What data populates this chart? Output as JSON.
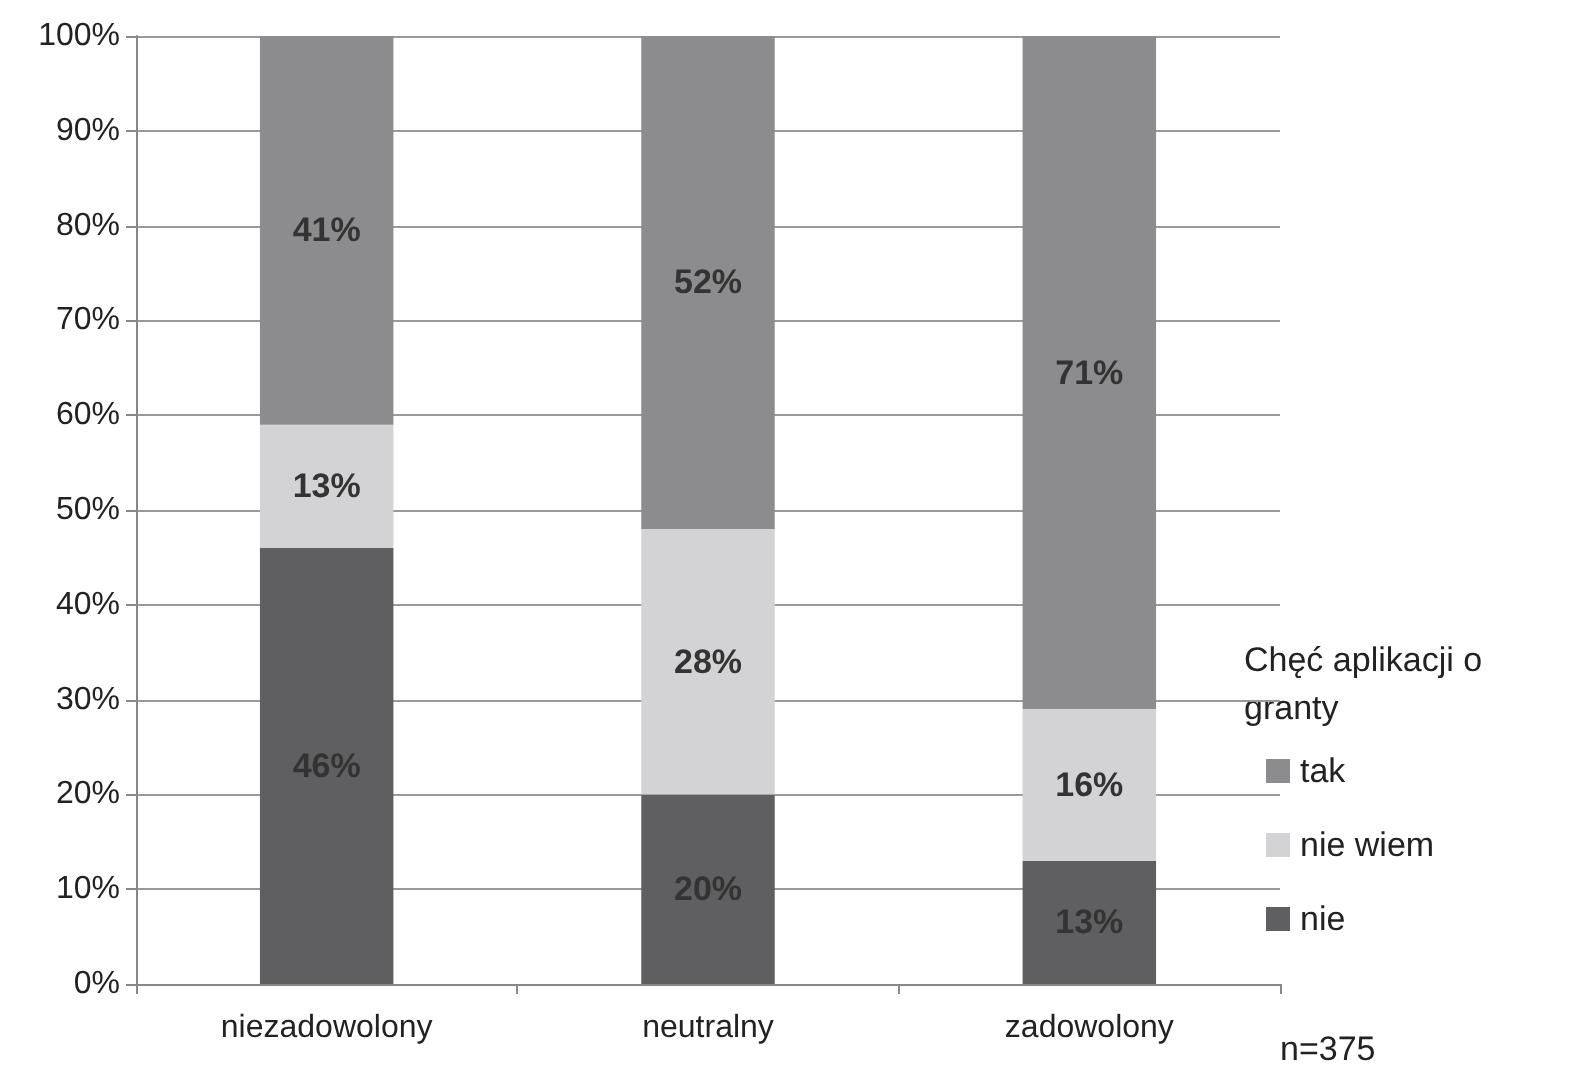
{
  "chart_data": {
    "type": "bar",
    "stacked": true,
    "categories": [
      "niezadowolony",
      "neutralny",
      "zadowolony"
    ],
    "series": [
      {
        "name": "nie",
        "color": "#5f5f61",
        "values": [
          46,
          20,
          13
        ],
        "value_labels": [
          "46%",
          "20%",
          "13%"
        ]
      },
      {
        "name": "nie wiem",
        "color": "#d3d3d5",
        "values": [
          13,
          28,
          16
        ],
        "value_labels": [
          "13%",
          "28%",
          "16%"
        ]
      },
      {
        "name": "tak",
        "color": "#8c8c8e",
        "values": [
          41,
          52,
          71
        ],
        "value_labels": [
          "41%",
          "52%",
          "71%"
        ]
      }
    ],
    "ylim": [
      0,
      100
    ],
    "yticks": [
      {
        "value": 0,
        "label": "0%"
      },
      {
        "value": 10,
        "label": "10%"
      },
      {
        "value": 20,
        "label": "20%"
      },
      {
        "value": 30,
        "label": "30%"
      },
      {
        "value": 40,
        "label": "40%"
      },
      {
        "value": 50,
        "label": "50%"
      },
      {
        "value": 60,
        "label": "60%"
      },
      {
        "value": 70,
        "label": "70%"
      },
      {
        "value": 80,
        "label": "80%"
      },
      {
        "value": 90,
        "label": "90%"
      },
      {
        "value": 100,
        "label": "100%"
      }
    ],
    "grid": "y",
    "legend": "right",
    "legend_title": "Chęć aplikacji o granty",
    "annotations": [
      "n=375"
    ]
  }
}
